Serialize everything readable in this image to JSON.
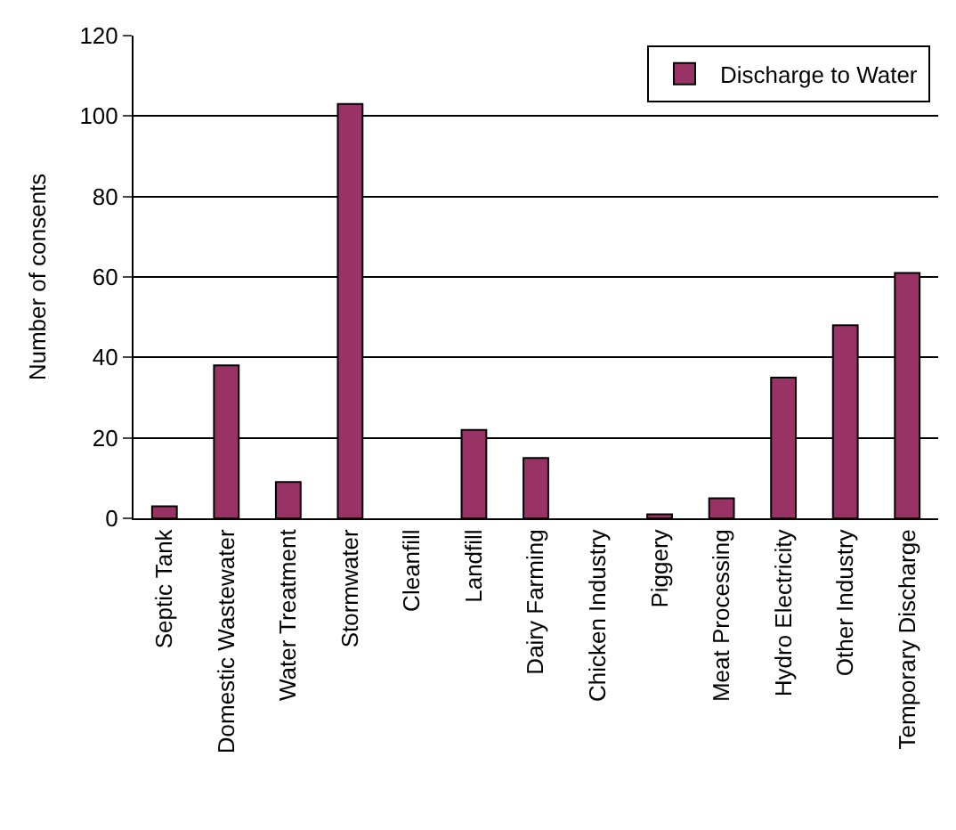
{
  "chart_data": {
    "type": "bar",
    "ylabel": "Number of consents",
    "categories": [
      "Septic Tank",
      "Domestic Wastewater",
      "Water Treatment",
      "Stormwater",
      "Cleanfill",
      "Landfill",
      "Dairy Farming",
      "Chicken Industry",
      "Piggery",
      "Meat Processing",
      "Hydro Electricity",
      "Other Industry",
      "Temporary Discharge"
    ],
    "series": [
      {
        "name": "Discharge to Water",
        "color": "#993366",
        "values": [
          3,
          38,
          9,
          103,
          0,
          22,
          15,
          0,
          1,
          5,
          35,
          48,
          61
        ]
      }
    ],
    "ylim": [
      0,
      120
    ],
    "yticks": [
      0,
      20,
      40,
      60,
      80,
      100,
      120
    ],
    "grid": "y",
    "legend": "top right"
  }
}
